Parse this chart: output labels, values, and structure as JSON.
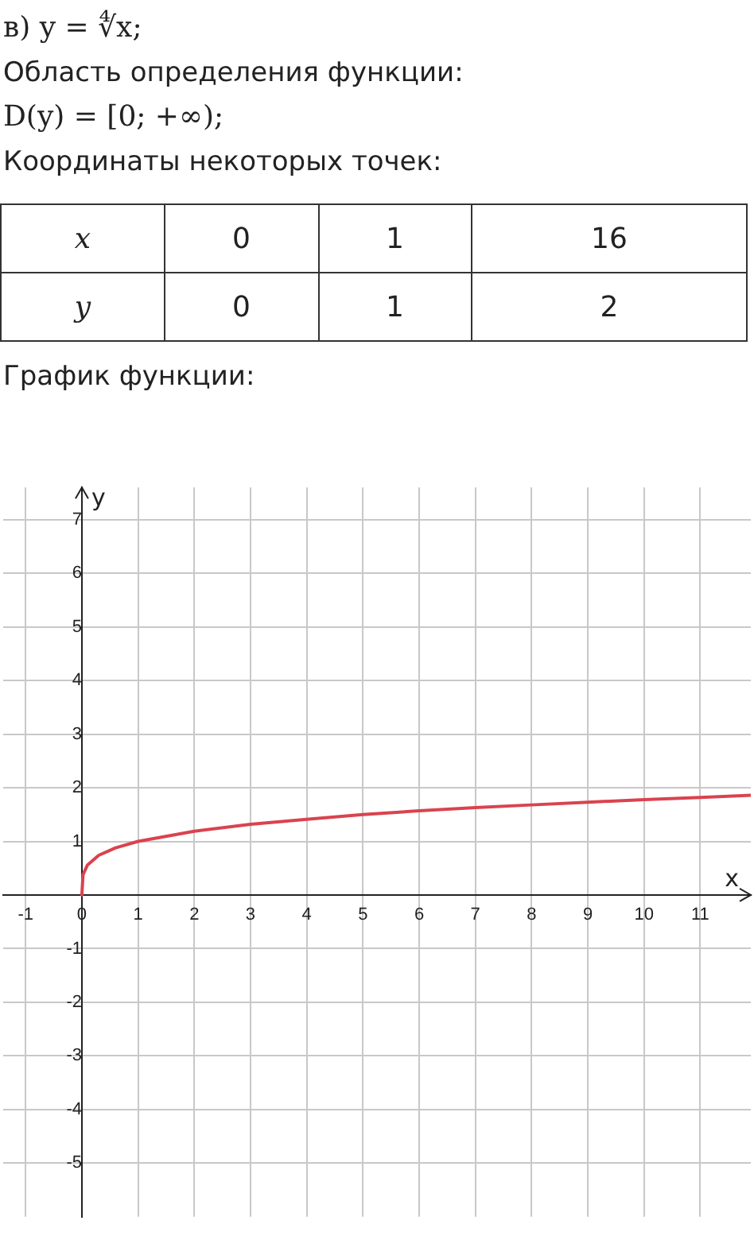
{
  "chart_data": {
    "type": "line",
    "title": "в) y = ∜x;",
    "annotations": [
      "Область определения функции:",
      "D(y) = [0; +∞);",
      "Координаты некоторых точек:",
      "x",
      "0",
      "1",
      "16",
      "y",
      "0",
      "1",
      "2",
      "График функции:"
    ],
    "xlabel": "x",
    "ylabel": "y",
    "x": [
      0,
      0.02,
      0.1,
      0.3,
      0.6,
      1,
      2,
      3,
      4,
      5,
      6,
      7,
      8,
      9,
      10,
      11,
      11.9
    ],
    "series": [
      {
        "color": "#d9434f",
        "values": [
          0,
          0.38,
          0.56,
          0.74,
          0.88,
          1,
          1.19,
          1.32,
          1.41,
          1.5,
          1.57,
          1.63,
          1.68,
          1.73,
          1.78,
          1.82,
          1.86
        ]
      }
    ],
    "xlim": [
      -1.4,
      11.9
    ],
    "ylim": [
      -6,
      7.6
    ],
    "xticks": [
      -1,
      0,
      1,
      2,
      3,
      4,
      5,
      6,
      7,
      8,
      9,
      10,
      11
    ],
    "yticks": [
      -5,
      -4,
      -3,
      -2,
      -1,
      1,
      2,
      3,
      4,
      5,
      6,
      7
    ],
    "grid": true,
    "marker": "none"
  }
}
